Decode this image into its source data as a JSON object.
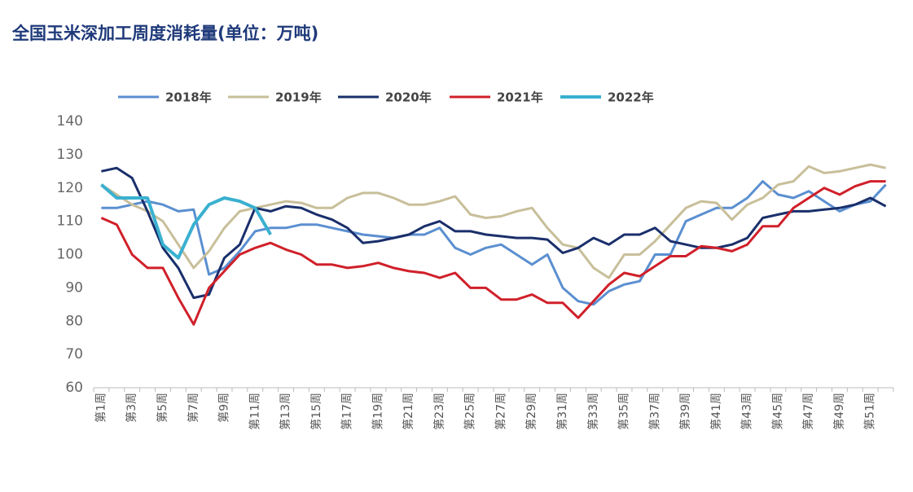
{
  "chart_data": {
    "type": "line",
    "title": "全国玉米深加工周度消耗量(单位：万吨)",
    "categories": [
      "第1周",
      null,
      "第3周",
      null,
      "第5周",
      null,
      "第7周",
      null,
      "第9周",
      null,
      "第11周",
      null,
      "第13周",
      null,
      "第15周",
      null,
      "第17周",
      null,
      "第19周",
      null,
      "第21周",
      null,
      "第23周",
      null,
      "第25周",
      null,
      "第27周",
      null,
      "第29周",
      null,
      "第31周",
      null,
      "第33周",
      null,
      "第35周",
      null,
      "第37周",
      null,
      "第39周",
      null,
      "第41周",
      null,
      "第43周",
      null,
      "第45周",
      null,
      "第47周",
      null,
      "第49周",
      null,
      "第51周",
      null
    ],
    "ylim": [
      60,
      140
    ],
    "yticks": [
      60,
      70,
      80,
      90,
      100,
      110,
      120,
      130,
      140
    ],
    "grid": false,
    "series": [
      {
        "name": "2018年",
        "color": "#5b8fd0",
        "values": [
          114,
          114,
          115,
          116,
          115,
          113,
          113.5,
          94,
          96,
          101,
          107,
          108,
          108,
          109,
          109,
          108,
          107,
          106,
          105.5,
          105,
          106,
          106,
          108,
          102,
          100,
          102,
          103,
          100,
          97,
          100,
          90,
          86,
          85,
          89,
          91,
          92,
          100,
          100,
          110,
          112,
          114,
          114,
          117,
          122,
          118,
          117,
          119,
          116,
          113,
          115,
          116,
          121
        ]
      },
      {
        "name": "2019年",
        "color": "#c8bf9a",
        "values": [
          121,
          118,
          115,
          113,
          110,
          103,
          96,
          101,
          108,
          113,
          114,
          115,
          116,
          115.5,
          114,
          114,
          117,
          118.5,
          118.5,
          117,
          115,
          115,
          116,
          117.5,
          112,
          111,
          111.5,
          113,
          114,
          108,
          103,
          102,
          96,
          93,
          100,
          100,
          104,
          109,
          114,
          116,
          115.5,
          110.5,
          115,
          117,
          121,
          122,
          126.5,
          124.5,
          125,
          126,
          127,
          126
        ]
      },
      {
        "name": "2020年",
        "color": "#1a2f6b",
        "values": [
          125,
          126,
          123,
          113,
          102,
          96,
          87,
          88,
          99,
          103,
          114,
          113,
          114.5,
          114,
          112,
          110.5,
          108,
          103.5,
          104,
          105,
          106,
          108.5,
          110,
          107,
          107,
          106,
          105.5,
          105,
          105,
          104.5,
          100.5,
          102,
          105,
          103,
          106,
          106,
          108,
          104,
          103,
          102,
          102,
          103,
          105,
          111,
          112,
          113,
          113,
          113.5,
          114,
          115,
          117,
          114.5
        ]
      },
      {
        "name": "2021年",
        "color": "#d0202a",
        "values": [
          111,
          109,
          100,
          96,
          96,
          87,
          79,
          90,
          95,
          100,
          102,
          103.5,
          101.5,
          100,
          97,
          97,
          96,
          96.5,
          97.5,
          96,
          95,
          94.5,
          93,
          94.5,
          90,
          90,
          86.5,
          86.5,
          88,
          85.5,
          85.5,
          81,
          86,
          91,
          94.5,
          93.5,
          96.5,
          99.5,
          99.5,
          102.5,
          102,
          101,
          103,
          108.5,
          108.5,
          114,
          117,
          120,
          118,
          120.5,
          122,
          122
        ]
      },
      {
        "name": "2022年",
        "color": "#3ab0d0",
        "values": [
          121,
          117,
          117,
          117,
          103,
          99,
          109,
          115,
          117,
          116,
          114,
          106,
          null,
          null,
          null,
          null,
          null,
          null,
          null,
          null,
          null,
          null,
          null,
          null,
          null,
          null,
          null,
          null,
          null,
          null,
          null,
          null,
          null,
          null,
          null,
          null,
          null,
          null,
          null,
          null,
          null,
          null,
          null,
          null,
          null,
          null,
          null,
          null,
          null,
          null,
          null,
          null
        ]
      }
    ]
  }
}
